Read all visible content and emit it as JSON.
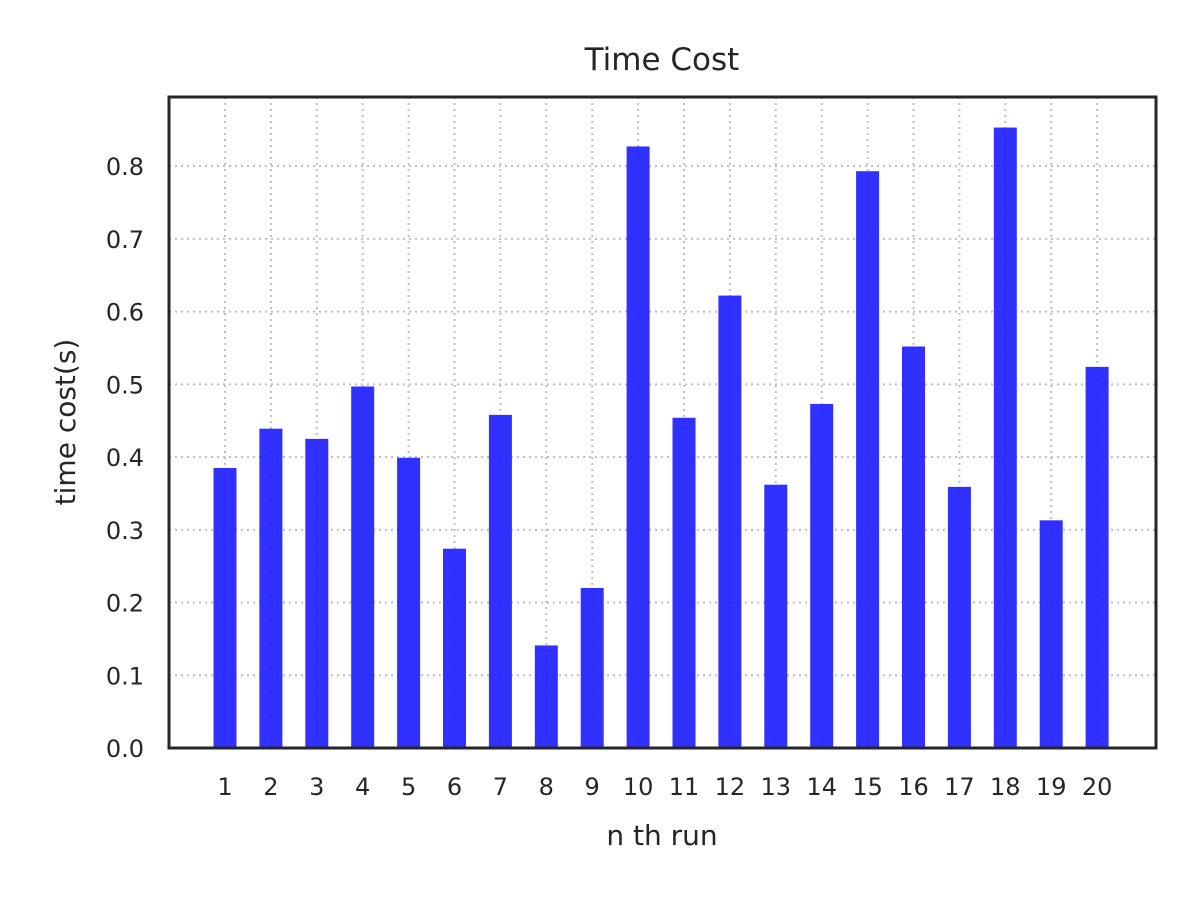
{
  "chart_data": {
    "type": "bar",
    "title": "Time Cost",
    "xlabel": "n th run",
    "ylabel": "time cost(s)",
    "categories": [
      "1",
      "2",
      "3",
      "4",
      "5",
      "6",
      "7",
      "8",
      "9",
      "10",
      "11",
      "12",
      "13",
      "14",
      "15",
      "16",
      "17",
      "18",
      "19",
      "20"
    ],
    "values": [
      0.385,
      0.439,
      0.425,
      0.497,
      0.399,
      0.274,
      0.458,
      0.141,
      0.22,
      0.827,
      0.454,
      0.622,
      0.362,
      0.473,
      0.793,
      0.552,
      0.359,
      0.853,
      0.313,
      0.524
    ],
    "yticks": [
      "0.0",
      "0.1",
      "0.2",
      "0.3",
      "0.4",
      "0.5",
      "0.6",
      "0.7",
      "0.8"
    ],
    "ylim": [
      0.0,
      0.895
    ],
    "grid": true,
    "bar_color": "#1a1aff"
  }
}
